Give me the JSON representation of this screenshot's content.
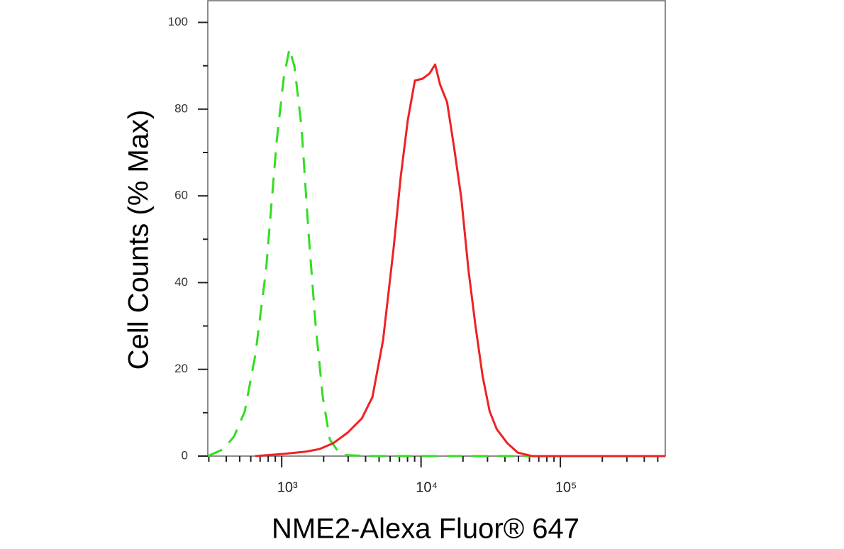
{
  "chart_data": {
    "type": "line",
    "xlabel": "NME2-Alexa Fluor® 647",
    "ylabel": "Cell Counts (% Max)",
    "xscale": "log",
    "xlim": [
      295,
      566000
    ],
    "ylim": [
      0,
      105
    ],
    "xticks": [
      {
        "value": 1000,
        "label": "10³"
      },
      {
        "value": 10000,
        "label": "10⁴"
      },
      {
        "value": 100000,
        "label": "10⁵"
      }
    ],
    "xminorticks": [
      300,
      400,
      500,
      600,
      700,
      800,
      900,
      2000,
      3000,
      4000,
      5000,
      6000,
      7000,
      8000,
      9000,
      20000,
      30000,
      40000,
      50000,
      60000,
      70000,
      80000,
      90000,
      200000,
      300000,
      400000,
      500000
    ],
    "yticks": [
      0,
      20,
      40,
      60,
      80,
      100
    ],
    "yminorticks": [
      10,
      30,
      50,
      70,
      90
    ],
    "series": [
      {
        "color": "#33dd22",
        "dash": true,
        "x": [
          295,
          383,
          456,
          543,
          648,
          773,
          921,
          1036,
          1137,
          1235,
          1388,
          1560,
          1754,
          1973,
          2218,
          2644,
          4227,
          566000
        ],
        "values": [
          0,
          1.6,
          4.6,
          10.3,
          23.4,
          43.1,
          72.6,
          87.4,
          93.9,
          89.8,
          75.9,
          51.3,
          30,
          13.6,
          3.8,
          0.3,
          0,
          0
        ]
      },
      {
        "color": "#ee2222",
        "dash": false,
        "x": [
          648,
          1036,
          1472,
          1859,
          2351,
          2973,
          3760,
          4478,
          5338,
          6362,
          7152,
          8041,
          9040,
          10236,
          11507,
          12619,
          13690,
          15390,
          17302,
          19452,
          21868,
          24585,
          27640,
          31073,
          34934,
          41560,
          49440,
          62600,
          566000
        ],
        "values": [
          0,
          0.5,
          1,
          1.6,
          3,
          5.4,
          8.7,
          13.6,
          26.7,
          48,
          64.4,
          77.5,
          86.6,
          87,
          88.2,
          90.3,
          85.7,
          81.6,
          71,
          59.5,
          43.1,
          30,
          18.5,
          10.3,
          6.2,
          3,
          0.8,
          0,
          0
        ]
      }
    ]
  }
}
